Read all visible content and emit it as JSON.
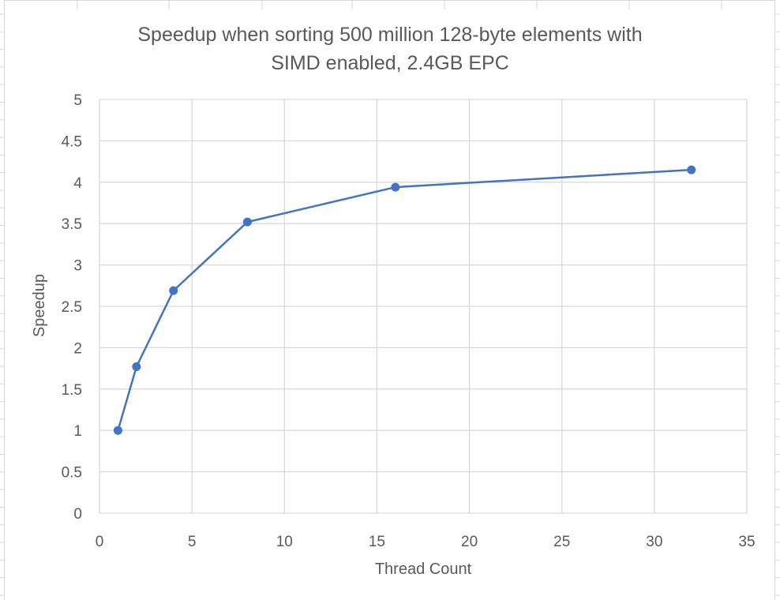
{
  "chart_data": {
    "type": "scatter",
    "title_line1": "Speedup when sorting 500 million 128-byte elements with",
    "title_line2": "SIMD enabled, 2.4GB EPC",
    "xlabel": "Thread Count",
    "ylabel": "Speedup",
    "xlim": [
      0,
      35
    ],
    "ylim": [
      0,
      5
    ],
    "x_ticks": [
      0,
      5,
      10,
      15,
      20,
      25,
      30,
      35
    ],
    "y_ticks": [
      0,
      0.5,
      1,
      1.5,
      2,
      2.5,
      3,
      3.5,
      4,
      4.5,
      5
    ],
    "grid": true,
    "legend": "none",
    "series": [
      {
        "x": [
          1,
          2,
          4,
          8,
          16,
          32
        ],
        "y": [
          1.0,
          1.77,
          2.69,
          3.52,
          3.94,
          4.15
        ],
        "color": "#4472C4",
        "markers": true,
        "lines": true
      }
    ]
  }
}
